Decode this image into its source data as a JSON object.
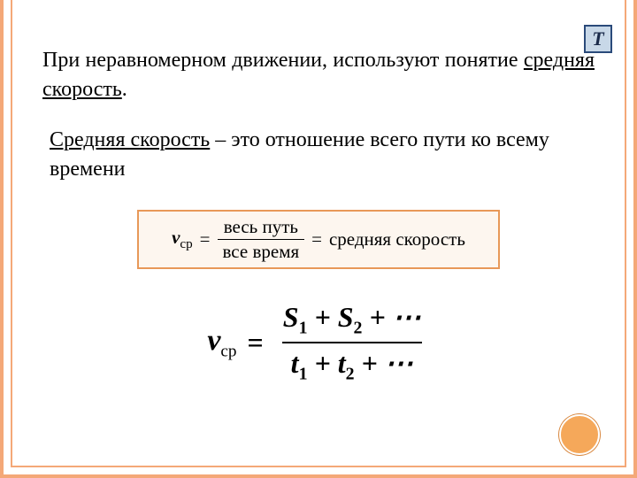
{
  "badge": {
    "letter": "Т",
    "bg_color": "#c8d8e8",
    "border_color": "#2a4a7a",
    "text_color": "#1a2a4a"
  },
  "paragraph1": {
    "prefix": "При неравномерном движении, используют понятие ",
    "underlined": "средняя скорость",
    "suffix": "."
  },
  "paragraph2": {
    "underlined": "Средняя скорость",
    "rest": " – это отношение всего пути ко всему времени"
  },
  "formula_box": {
    "border_color": "#e89858",
    "bg_color": "#fdf6ef",
    "lhs_symbol": "v",
    "lhs_sub": "ср",
    "eq": "=",
    "numerator": "весь путь",
    "denominator": "все время",
    "eq2": "=",
    "rhs": "средняя скорость"
  },
  "formula2": {
    "lhs_symbol": "v",
    "lhs_sub": "ср",
    "eq": "=",
    "num_terms": [
      "S",
      "1",
      " + ",
      "S",
      "2",
      " + ⋯"
    ],
    "den_terms": [
      "t",
      "1",
      " + ",
      "t",
      "2",
      " + ⋯"
    ]
  },
  "frame": {
    "outer_color": "#f4a878",
    "circle_color": "#f5a85a"
  },
  "typography": {
    "body_font": "Times New Roman",
    "body_size_pt": 18,
    "formula_font": "Cambria Math"
  }
}
